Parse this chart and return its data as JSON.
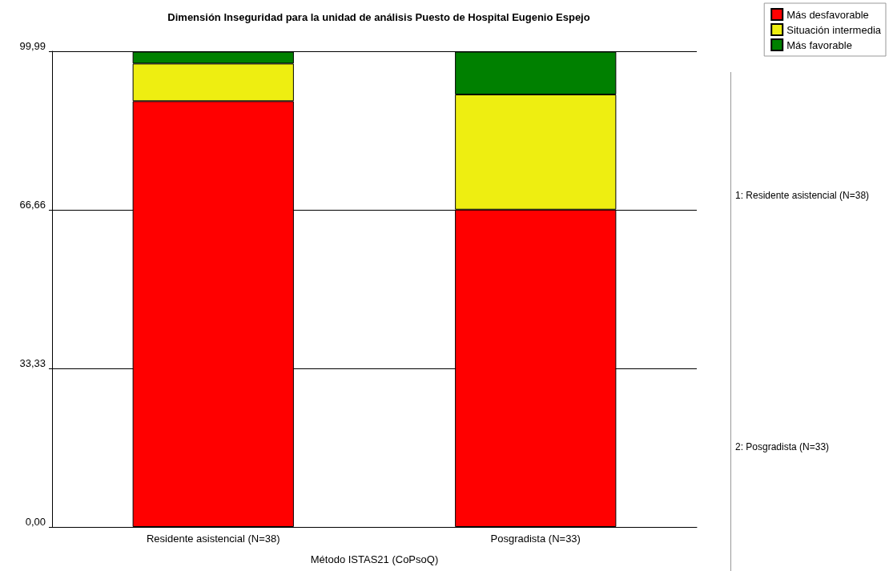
{
  "chart_data": {
    "type": "bar",
    "title": "Dimensión Inseguridad para la unidad de análisis Puesto de Hospital Eugenio Espejo",
    "xlabel": "Método ISTAS21 (CoPsoQ)",
    "categories": [
      "Residente asistencial (N=38)",
      "Posgradista (N=33)"
    ],
    "stacked": true,
    "series": [
      {
        "name": "Más desfavorable",
        "color": "#ff0000",
        "values": [
          89.5,
          66.7
        ]
      },
      {
        "name": "Situación intermedia",
        "color": "#eeee11",
        "values": [
          7.9,
          24.2
        ]
      },
      {
        "name": "Más favorable",
        "color": "#008000",
        "values": [
          2.5,
          9
        ]
      }
    ],
    "ylim": [
      0,
      99.99
    ],
    "yticks": [
      {
        "value": 0,
        "label": "0,00"
      },
      {
        "value": 33.33,
        "label": "33,33"
      },
      {
        "value": 66.66,
        "label": "66,66"
      },
      {
        "value": 99.99,
        "label": "99,99"
      }
    ],
    "grid": "y",
    "legend": "top right",
    "annotations": [
      "1: Residente asistencial (N=38)",
      "2: Posgradista (N=33)"
    ]
  }
}
